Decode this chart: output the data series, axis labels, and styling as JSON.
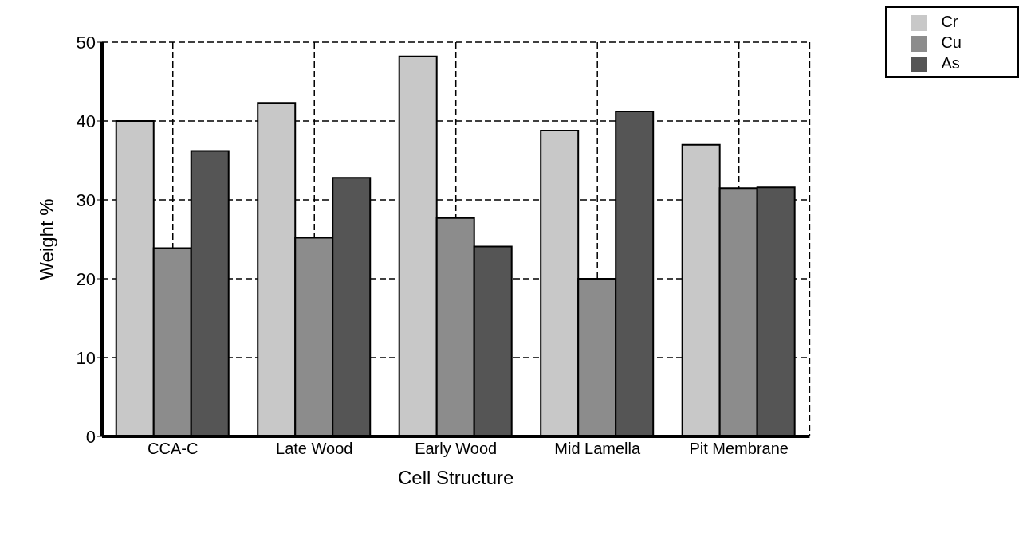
{
  "chart_data": {
    "type": "bar",
    "xlabel": "Cell Structure",
    "ylabel": "Weight %",
    "categories": [
      "CCA-C",
      "Late Wood",
      "Early Wood",
      "Mid Lamella",
      "Pit Membrane"
    ],
    "series": [
      {
        "name": "Cr",
        "color": "#c8c8c8",
        "values": [
          40,
          42.3,
          48.2,
          38.8,
          37
        ]
      },
      {
        "name": "Cu",
        "color": "#8c8c8c",
        "values": [
          23.9,
          25.2,
          27.7,
          20,
          31.5
        ]
      },
      {
        "name": "As",
        "color": "#555555",
        "values": [
          36.2,
          32.8,
          24.1,
          41.2,
          31.6
        ]
      }
    ],
    "ylim": [
      0,
      50
    ],
    "yticks": [
      0,
      10,
      20,
      30,
      40,
      50
    ],
    "grid": true,
    "legend": "top right"
  }
}
